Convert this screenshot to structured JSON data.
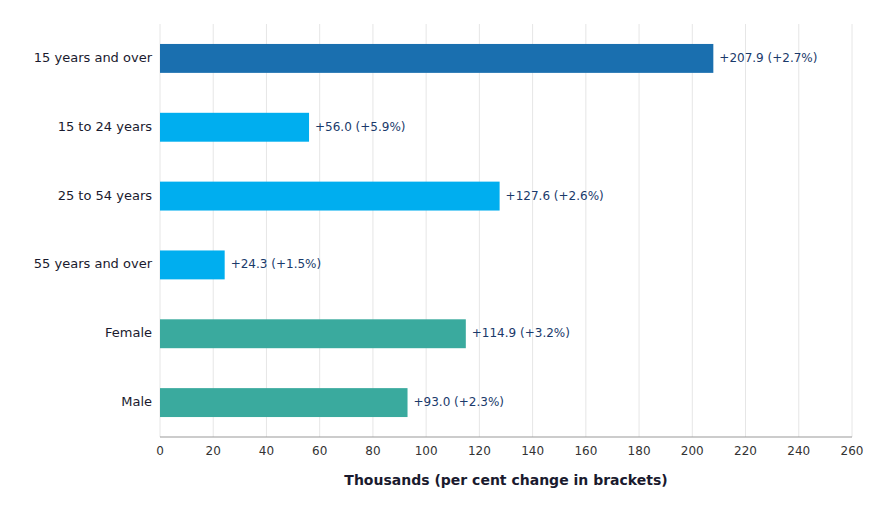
{
  "chart_data": {
    "type": "bar",
    "orientation": "horizontal",
    "categories": [
      "Male",
      "Female",
      "55 years and over",
      "25 to 54 years",
      "15 to 24 years",
      "15 years and over"
    ],
    "values": [
      93.0,
      114.9,
      24.3,
      127.6,
      56.0,
      207.9
    ],
    "value_labels": [
      "+93.0 (+2.3%)",
      "+114.9 (+3.2%)",
      "+24.3 (+1.5%)",
      "+127.6 (+2.6%)",
      "+56.0 (+5.9%)",
      "+207.9 (+2.7%)"
    ],
    "colors": [
      "#3aaa9e",
      "#3aaa9e",
      "#00aeef",
      "#00aeef",
      "#00aeef",
      "#1a6faf"
    ],
    "xlabel": "Thousands (per cent change in brackets)",
    "xlim": [
      0,
      260
    ],
    "xticks": [
      0,
      20,
      40,
      60,
      80,
      100,
      120,
      140,
      160,
      180,
      200,
      220,
      240,
      260
    ],
    "grid": true
  }
}
